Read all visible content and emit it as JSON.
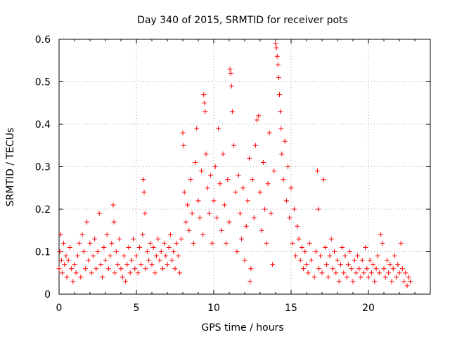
{
  "chart_data": {
    "type": "scatter",
    "title": "Day 340 of 2015, SRMTID for receiver pots",
    "xlabel": "GPS time / hours",
    "ylabel": "SRMTID / TECUs",
    "xlim": [
      0,
      24
    ],
    "ylim": [
      0,
      0.6
    ],
    "xticks": [
      0,
      5,
      10,
      15,
      20
    ],
    "xtick_labels": [
      "0",
      "5",
      "10",
      "15",
      "20"
    ],
    "yticks": [
      0,
      0.1,
      0.2,
      0.3,
      0.4,
      0.5,
      0.6
    ],
    "ytick_labels": [
      "0",
      "0.1",
      "0.2",
      "0.3",
      "0.4",
      "0.5",
      "0.6"
    ],
    "grid": true,
    "marker": "+",
    "color": "#ff0000",
    "series": [
      {
        "name": "SRMTID",
        "points": [
          [
            0.0,
            0.06
          ],
          [
            0.05,
            0.1
          ],
          [
            0.1,
            0.14
          ],
          [
            0.15,
            0.08
          ],
          [
            0.2,
            0.05
          ],
          [
            0.3,
            0.12
          ],
          [
            0.35,
            0.07
          ],
          [
            0.45,
            0.09
          ],
          [
            0.5,
            0.04
          ],
          [
            0.6,
            0.08
          ],
          [
            0.7,
            0.11
          ],
          [
            0.8,
            0.06
          ],
          [
            0.9,
            0.03
          ],
          [
            1.0,
            0.07
          ],
          [
            1.1,
            0.05
          ],
          [
            1.2,
            0.09
          ],
          [
            1.3,
            0.12
          ],
          [
            1.4,
            0.04
          ],
          [
            1.5,
            0.14
          ],
          [
            1.6,
            0.1
          ],
          [
            1.7,
            0.06
          ],
          [
            1.8,
            0.17
          ],
          [
            1.9,
            0.08
          ],
          [
            2.0,
            0.12
          ],
          [
            2.1,
            0.05
          ],
          [
            2.2,
            0.09
          ],
          [
            2.3,
            0.13
          ],
          [
            2.4,
            0.06
          ],
          [
            2.5,
            0.1
          ],
          [
            2.6,
            0.19
          ],
          [
            2.7,
            0.07
          ],
          [
            2.8,
            0.04
          ],
          [
            2.9,
            0.11
          ],
          [
            3.0,
            0.08
          ],
          [
            3.1,
            0.14
          ],
          [
            3.2,
            0.06
          ],
          [
            3.3,
            0.09
          ],
          [
            3.4,
            0.12
          ],
          [
            3.5,
            0.21
          ],
          [
            3.55,
            0.17
          ],
          [
            3.6,
            0.05
          ],
          [
            3.7,
            0.1
          ],
          [
            3.8,
            0.07
          ],
          [
            3.9,
            0.13
          ],
          [
            4.0,
            0.06
          ],
          [
            4.1,
            0.04
          ],
          [
            4.2,
            0.09
          ],
          [
            4.3,
            0.03
          ],
          [
            4.4,
            0.07
          ],
          [
            4.5,
            0.11
          ],
          [
            4.6,
            0.05
          ],
          [
            4.7,
            0.08
          ],
          [
            4.8,
            0.13
          ],
          [
            4.9,
            0.06
          ],
          [
            5.0,
            0.09
          ],
          [
            5.1,
            0.05
          ],
          [
            5.2,
            0.11
          ],
          [
            5.3,
            0.07
          ],
          [
            5.4,
            0.14
          ],
          [
            5.45,
            0.27
          ],
          [
            5.5,
            0.24
          ],
          [
            5.55,
            0.19
          ],
          [
            5.6,
            0.06
          ],
          [
            5.7,
            0.1
          ],
          [
            5.8,
            0.08
          ],
          [
            5.9,
            0.12
          ],
          [
            6.0,
            0.07
          ],
          [
            6.1,
            0.11
          ],
          [
            6.2,
            0.05
          ],
          [
            6.3,
            0.09
          ],
          [
            6.4,
            0.13
          ],
          [
            6.5,
            0.08
          ],
          [
            6.6,
            0.1
          ],
          [
            6.7,
            0.06
          ],
          [
            6.8,
            0.12
          ],
          [
            6.9,
            0.09
          ],
          [
            7.0,
            0.07
          ],
          [
            7.1,
            0.11
          ],
          [
            7.2,
            0.14
          ],
          [
            7.3,
            0.08
          ],
          [
            7.4,
            0.1
          ],
          [
            7.5,
            0.06
          ],
          [
            7.6,
            0.12
          ],
          [
            7.7,
            0.09
          ],
          [
            7.8,
            0.05
          ],
          [
            7.9,
            0.13
          ],
          [
            8.0,
            0.38
          ],
          [
            8.05,
            0.35
          ],
          [
            8.1,
            0.24
          ],
          [
            8.2,
            0.17
          ],
          [
            8.3,
            0.21
          ],
          [
            8.4,
            0.15
          ],
          [
            8.5,
            0.27
          ],
          [
            8.6,
            0.19
          ],
          [
            8.7,
            0.12
          ],
          [
            8.8,
            0.31
          ],
          [
            8.9,
            0.39
          ],
          [
            9.0,
            0.22
          ],
          [
            9.1,
            0.18
          ],
          [
            9.2,
            0.29
          ],
          [
            9.3,
            0.14
          ],
          [
            9.35,
            0.47
          ],
          [
            9.4,
            0.45
          ],
          [
            9.45,
            0.43
          ],
          [
            9.5,
            0.33
          ],
          [
            9.6,
            0.25
          ],
          [
            9.7,
            0.19
          ],
          [
            9.8,
            0.28
          ],
          [
            9.9,
            0.12
          ],
          [
            10.0,
            0.22
          ],
          [
            10.1,
            0.3
          ],
          [
            10.2,
            0.18
          ],
          [
            10.3,
            0.39
          ],
          [
            10.4,
            0.26
          ],
          [
            10.5,
            0.15
          ],
          [
            10.6,
            0.33
          ],
          [
            10.7,
            0.21
          ],
          [
            10.8,
            0.12
          ],
          [
            10.9,
            0.27
          ],
          [
            11.0,
            0.17
          ],
          [
            11.05,
            0.53
          ],
          [
            11.1,
            0.52
          ],
          [
            11.15,
            0.49
          ],
          [
            11.2,
            0.43
          ],
          [
            11.3,
            0.35
          ],
          [
            11.4,
            0.24
          ],
          [
            11.5,
            0.1
          ],
          [
            11.6,
            0.28
          ],
          [
            11.7,
            0.19
          ],
          [
            11.8,
            0.13
          ],
          [
            11.9,
            0.25
          ],
          [
            12.0,
            0.08
          ],
          [
            12.1,
            0.16
          ],
          [
            12.2,
            0.22
          ],
          [
            12.3,
            0.32
          ],
          [
            12.35,
            0.03
          ],
          [
            12.4,
            0.06
          ],
          [
            12.5,
            0.27
          ],
          [
            12.6,
            0.18
          ],
          [
            12.7,
            0.35
          ],
          [
            12.8,
            0.41
          ],
          [
            12.9,
            0.42
          ],
          [
            13.0,
            0.24
          ],
          [
            13.1,
            0.15
          ],
          [
            13.2,
            0.31
          ],
          [
            13.3,
            0.2
          ],
          [
            13.4,
            0.12
          ],
          [
            13.5,
            0.26
          ],
          [
            13.6,
            0.38
          ],
          [
            13.7,
            0.19
          ],
          [
            13.8,
            0.07
          ],
          [
            13.9,
            0.29
          ],
          [
            14.0,
            0.59
          ],
          [
            14.05,
            0.58
          ],
          [
            14.1,
            0.56
          ],
          [
            14.15,
            0.54
          ],
          [
            14.2,
            0.51
          ],
          [
            14.25,
            0.47
          ],
          [
            14.3,
            0.43
          ],
          [
            14.35,
            0.39
          ],
          [
            14.4,
            0.33
          ],
          [
            14.5,
            0.27
          ],
          [
            14.6,
            0.36
          ],
          [
            14.7,
            0.22
          ],
          [
            14.8,
            0.3
          ],
          [
            14.9,
            0.18
          ],
          [
            15.0,
            0.25
          ],
          [
            15.1,
            0.12
          ],
          [
            15.2,
            0.2
          ],
          [
            15.3,
            0.09
          ],
          [
            15.4,
            0.16
          ],
          [
            15.5,
            0.13
          ],
          [
            15.6,
            0.08
          ],
          [
            15.7,
            0.11
          ],
          [
            15.8,
            0.06
          ],
          [
            15.9,
            0.1
          ],
          [
            16.0,
            0.07
          ],
          [
            16.1,
            0.05
          ],
          [
            16.2,
            0.12
          ],
          [
            16.3,
            0.08
          ],
          [
            16.5,
            0.04
          ],
          [
            16.6,
            0.1
          ],
          [
            16.7,
            0.29
          ],
          [
            16.75,
            0.2
          ],
          [
            16.8,
            0.06
          ],
          [
            16.9,
            0.09
          ],
          [
            17.0,
            0.05
          ],
          [
            17.1,
            0.27
          ],
          [
            17.2,
            0.11
          ],
          [
            17.3,
            0.07
          ],
          [
            17.4,
            0.04
          ],
          [
            17.5,
            0.09
          ],
          [
            17.6,
            0.13
          ],
          [
            17.7,
            0.06
          ],
          [
            17.8,
            0.1
          ],
          [
            17.9,
            0.05
          ],
          [
            18.0,
            0.08
          ],
          [
            18.1,
            0.03
          ],
          [
            18.2,
            0.07
          ],
          [
            18.3,
            0.11
          ],
          [
            18.4,
            0.05
          ],
          [
            18.5,
            0.09
          ],
          [
            18.6,
            0.04
          ],
          [
            18.7,
            0.07
          ],
          [
            18.8,
            0.1
          ],
          [
            18.9,
            0.06
          ],
          [
            19.0,
            0.03
          ],
          [
            19.1,
            0.08
          ],
          [
            19.2,
            0.05
          ],
          [
            19.3,
            0.09
          ],
          [
            19.4,
            0.06
          ],
          [
            19.5,
            0.04
          ],
          [
            19.6,
            0.08
          ],
          [
            19.7,
            0.05
          ],
          [
            19.8,
            0.11
          ],
          [
            19.9,
            0.06
          ],
          [
            20.0,
            0.04
          ],
          [
            20.1,
            0.08
          ],
          [
            20.2,
            0.05
          ],
          [
            20.3,
            0.07
          ],
          [
            20.4,
            0.03
          ],
          [
            20.5,
            0.06
          ],
          [
            20.6,
            0.09
          ],
          [
            20.7,
            0.05
          ],
          [
            20.8,
            0.14
          ],
          [
            20.9,
            0.12
          ],
          [
            21.0,
            0.06
          ],
          [
            21.1,
            0.04
          ],
          [
            21.2,
            0.08
          ],
          [
            21.3,
            0.05
          ],
          [
            21.4,
            0.07
          ],
          [
            21.5,
            0.03
          ],
          [
            21.6,
            0.06
          ],
          [
            21.7,
            0.09
          ],
          [
            21.8,
            0.04
          ],
          [
            21.9,
            0.07
          ],
          [
            22.0,
            0.05
          ],
          [
            22.1,
            0.12
          ],
          [
            22.2,
            0.06
          ],
          [
            22.3,
            0.03
          ],
          [
            22.4,
            0.05
          ],
          [
            22.5,
            0.02
          ],
          [
            22.6,
            0.04
          ],
          [
            22.7,
            0.03
          ]
        ]
      }
    ]
  }
}
